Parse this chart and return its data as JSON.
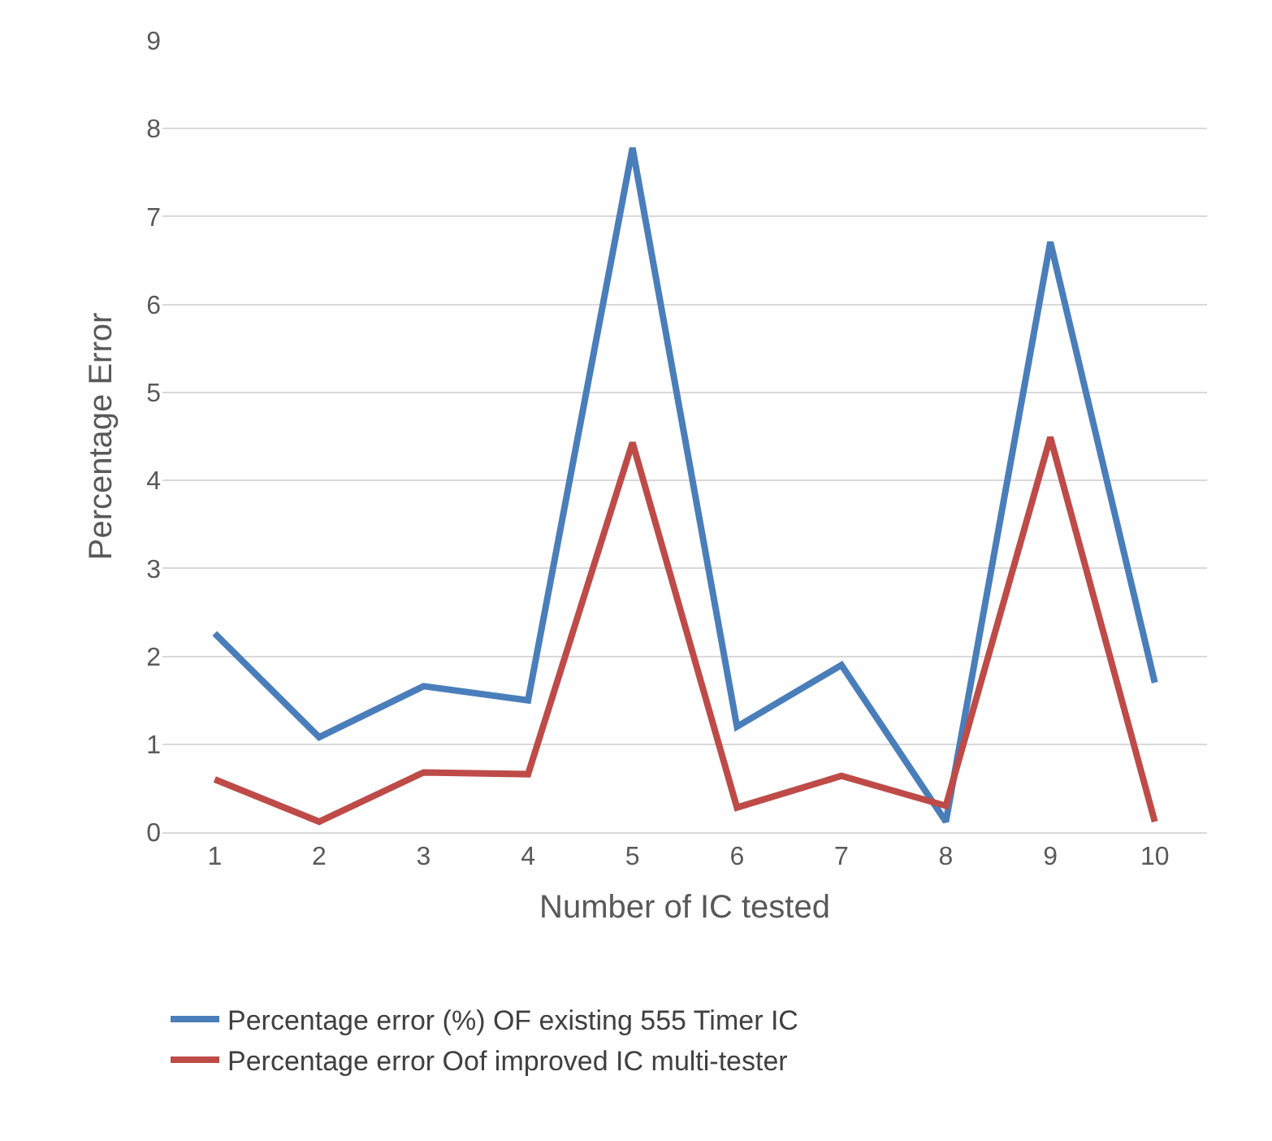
{
  "chart_data": {
    "type": "line",
    "xlabel": "Number of IC tested",
    "ylabel": "Percentage Error",
    "categories": [
      "1",
      "2",
      "3",
      "4",
      "5",
      "6",
      "7",
      "8",
      "9",
      "10"
    ],
    "series": [
      {
        "name": "Percentage error (%) OF existing 555 Timer IC",
        "color": "#4a7ebb",
        "values": [
          2.26,
          1.08,
          1.66,
          1.5,
          7.78,
          1.2,
          1.9,
          0.12,
          6.71,
          1.7
        ]
      },
      {
        "name": "Percentage error Oof improved IC multi-tester",
        "color": "#be4b48",
        "values": [
          0.6,
          0.12,
          0.68,
          0.66,
          4.43,
          0.28,
          0.64,
          0.3,
          4.49,
          0.12
        ]
      }
    ],
    "ylim": [
      0,
      9
    ],
    "yticks": [
      0,
      1,
      2,
      3,
      4,
      5,
      6,
      7,
      8,
      9
    ],
    "grid": "y",
    "legend": "bottom",
    "marker": "none",
    "line_style": "solid"
  }
}
